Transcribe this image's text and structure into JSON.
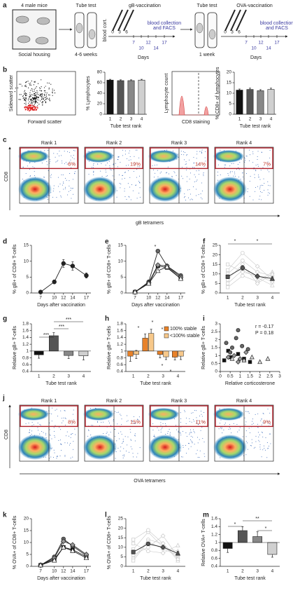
{
  "panel_labels": [
    "a",
    "b",
    "c",
    "d",
    "e",
    "f",
    "g",
    "h",
    "i",
    "j",
    "k",
    "l",
    "m"
  ],
  "schematic": {
    "housing_top": "4 male mice",
    "housing_bottom": "Social housing",
    "tube1": "Tube test",
    "tube1_time": "4-6 weeks",
    "cort": "blood cort.",
    "vacc1": "gB-vaccination",
    "tube2": "Tube test",
    "tube2_time": "1 week",
    "vacc2": "OVA-vaccination",
    "injections": [
      0,
      3,
      6
    ],
    "sampling": [
      7,
      10,
      12,
      14,
      17
    ],
    "note": [
      "blood collection",
      "and FACS"
    ],
    "axis": "Days"
  },
  "gating": {
    "scatter_y": "Sideward scatter",
    "scatter_x": "Forward scatter",
    "hist_y": "Lymphocyte count",
    "hist_x": "CD8 staining"
  },
  "flow": [
    {
      "ylabel": "CD8",
      "xlabel": "gB tetramers",
      "panels": [
        {
          "title": "Rank 1",
          "percent": "6%"
        },
        {
          "title": "Rank 2",
          "percent": "19%"
        },
        {
          "title": "Rank 3",
          "percent": "14%"
        },
        {
          "title": "Rank 4",
          "percent": "7%"
        }
      ]
    },
    {
      "ylabel": "CD8",
      "xlabel": "OVA tetramers",
      "panels": [
        {
          "title": "Rank 1",
          "percent": "8%"
        },
        {
          "title": "Rank 2",
          "percent": "15%"
        },
        {
          "title": "Rank 3",
          "percent": "11%"
        },
        {
          "title": "Rank 4",
          "percent": "9%"
        }
      ]
    }
  ],
  "chart_data": [
    {
      "type": "bar",
      "categories": [
        "1",
        "2",
        "3",
        "4"
      ],
      "values": [
        65,
        64,
        64,
        65
      ],
      "errors": [
        1.5,
        1.5,
        1.5,
        1.5
      ],
      "colors": [
        "#111111",
        "#555555",
        "#888888",
        "#d0d0d0"
      ],
      "ylim": [
        0,
        80
      ],
      "yticks": [
        0,
        20,
        40,
        60,
        80
      ],
      "ylabel": "% Lymphocytes",
      "xlabel": "Tube test rank"
    },
    {
      "type": "bar",
      "categories": [
        "1",
        "2",
        "3",
        "4"
      ],
      "values": [
        11.5,
        11.8,
        11.2,
        11.8
      ],
      "errors": [
        0.5,
        0.6,
        0.5,
        0.6
      ],
      "colors": [
        "#111111",
        "#555555",
        "#888888",
        "#d0d0d0"
      ],
      "ylim": [
        0,
        20
      ],
      "yticks": [
        0,
        5,
        10,
        15,
        20
      ],
      "ylabel": "% CD8+ of lymphocytes",
      "xlabel": "Tube test rank"
    },
    {
      "type": "line",
      "x": [
        7,
        10,
        12,
        14,
        17
      ],
      "xlim": [
        5,
        18
      ],
      "xticks": [
        7,
        10,
        12,
        14,
        17
      ],
      "ylim": [
        0,
        15
      ],
      "yticks": [
        0,
        5,
        10,
        15
      ],
      "series": [
        {
          "color": "#222222",
          "marker": "circle",
          "values": [
            0.3,
            3.5,
            9.3,
            8.5,
            5.5
          ],
          "errors": [
            0.2,
            0.6,
            1.2,
            1.3,
            0.8
          ]
        }
      ],
      "ylabel": "% gB+ of CD8+ T-cells",
      "xlabel": "Days after vaccination"
    },
    {
      "type": "line",
      "x": [
        7,
        10,
        12,
        14,
        17
      ],
      "xlim": [
        5,
        18
      ],
      "xticks": [
        7,
        10,
        12,
        14,
        17
      ],
      "ylim": [
        0,
        15
      ],
      "yticks": [
        0,
        5,
        10,
        15
      ],
      "series": [
        {
          "color": "#111111",
          "marker": "square",
          "values": [
            0.3,
            3,
            8.5,
            8,
            4.5
          ]
        },
        {
          "color": "#666666",
          "marker": "circle",
          "values": [
            0.3,
            3.5,
            13.2,
            8.5,
            5.5
          ]
        },
        {
          "color": "#9a9a9a",
          "marker": "diamond",
          "values": [
            0.3,
            3.2,
            8.8,
            8.5,
            5
          ]
        },
        {
          "color": "#ffffff",
          "marker": "triangle",
          "values": [
            0.3,
            3,
            7,
            8.2,
            4.5
          ]
        }
      ],
      "annotations": [
        "*"
      ],
      "ylabel": "% gB+ of CD8+ T-cells",
      "xlabel": "Days after vaccination"
    },
    {
      "type": "line",
      "categories": [
        "1",
        "2",
        "3",
        "4"
      ],
      "markers": [
        "square",
        "circle",
        "diamond",
        "triangle"
      ],
      "ylim": [
        0,
        25
      ],
      "yticks": [
        0,
        5,
        10,
        15,
        20,
        25
      ],
      "series": [
        {
          "color": "#c8c8c8",
          "fill": false,
          "values": [
            5,
            12,
            8,
            4
          ]
        },
        {
          "color": "#c8c8c8",
          "fill": false,
          "values": [
            10,
            17,
            11,
            9
          ]
        },
        {
          "color": "#c8c8c8",
          "fill": false,
          "values": [
            3,
            9,
            6,
            11
          ]
        },
        {
          "color": "#c8c8c8",
          "fill": false,
          "values": [
            12,
            21,
            14,
            7
          ]
        },
        {
          "color": "#c8c8c8",
          "fill": false,
          "values": [
            7,
            15,
            5,
            10
          ]
        },
        {
          "color": "#c8c8c8",
          "fill": false,
          "values": [
            15,
            11,
            9,
            6
          ]
        },
        {
          "color": "#555555",
          "fill": true,
          "values": [
            8.5,
            13.2,
            8.8,
            7.5
          ],
          "errors": [
            1,
            1.2,
            1,
            1
          ]
        }
      ],
      "annotations": [
        "*",
        "*"
      ],
      "ylabel": "% gB+ of CD8+ T-cells",
      "xlabel": "Tube test rank"
    },
    {
      "type": "bar",
      "base": 1,
      "categories": [
        "1",
        "2",
        "3",
        "4"
      ],
      "values": [
        0.89,
        1.45,
        0.87,
        0.86
      ],
      "errors": [
        0.1,
        0.09,
        0.09,
        0.12
      ],
      "colors": [
        "#111111",
        "#555555",
        "#888888",
        "#d0d0d0"
      ],
      "ylim": [
        0.4,
        1.8
      ],
      "yticks": [
        0.4,
        0.6,
        0.8,
        1,
        1.2,
        1.4,
        1.6,
        1.8
      ],
      "annotations": [
        "***",
        "***",
        "***"
      ],
      "ylabel": "Relative gB+ T-cells",
      "xlabel": "Tube test rank"
    },
    {
      "type": "grouped_bar",
      "base": 1,
      "categories": [
        "1",
        "2",
        "3",
        "4"
      ],
      "ylim": [
        0.4,
        1.8
      ],
      "yticks": [
        0.4,
        0.6,
        0.8,
        1,
        1.2,
        1.4,
        1.6,
        1.8
      ],
      "series": [
        {
          "name": "100% stable",
          "color": "#e8822a",
          "values": [
            0.85,
            1.38,
            0.9,
            0.82
          ],
          "errors": [
            0.15,
            0.12,
            0.1,
            0.08
          ]
        },
        {
          "name": "<100% stable",
          "color": "#f7c88a",
          "values": [
            0.9,
            1.52,
            0.83,
            0.85
          ],
          "errors": [
            0.12,
            0.12,
            0.08,
            0.1
          ]
        }
      ],
      "annotations": [
        "*",
        "*",
        "*",
        "*",
        "*"
      ],
      "ylabel": "Relative gB+ T-cells",
      "xlabel": "Tube test rank"
    },
    {
      "type": "scatter",
      "xlim": [
        0,
        3
      ],
      "xticks": [
        0,
        0.5,
        1,
        1.5,
        2,
        2.5,
        3
      ],
      "ylim": [
        0,
        3
      ],
      "yticks": [
        0,
        0.5,
        1,
        1.5,
        2,
        2.5,
        3
      ],
      "series": [
        {
          "color": "#111111",
          "marker": "square",
          "x": [
            0.2,
            0.5,
            0.9,
            1.2,
            0.4,
            1.5
          ],
          "values": [
            0.7,
            0.9,
            1.1,
            0.8,
            1.3,
            0.6
          ]
        },
        {
          "color": "#666666",
          "marker": "circle",
          "x": [
            0.3,
            0.6,
            0.8,
            1.1,
            0.5,
            1.4,
            0.9
          ],
          "values": [
            1.8,
            1.5,
            2.1,
            1.6,
            1.2,
            1.4,
            2.6
          ]
        },
        {
          "color": "#9a9a9a",
          "marker": "diamond",
          "x": [
            0.4,
            0.7,
            1.0,
            1.3,
            0.9
          ],
          "values": [
            0.9,
            1.0,
            0.8,
            1.2,
            0.6
          ]
        },
        {
          "color": "#e0e0e0",
          "marker": "triangle",
          "x": [
            0.6,
            1.2,
            1.6,
            2.0,
            2.4
          ],
          "values": [
            0.8,
            0.7,
            0.9,
            0.6,
            0.8
          ]
        }
      ],
      "annotations": [
        "r = -0.17",
        "P = 0.18"
      ],
      "ylabel": "Relative gB+ T-cells",
      "xlabel": "Relative corticosterone"
    },
    {
      "type": "line",
      "x": [
        7,
        10,
        12,
        14,
        17
      ],
      "xlim": [
        5,
        18
      ],
      "xticks": [
        7,
        10,
        12,
        14,
        17
      ],
      "ylim": [
        0,
        20
      ],
      "yticks": [
        0,
        5,
        10,
        15,
        20
      ],
      "series": [
        {
          "color": "#111111",
          "marker": "square",
          "values": [
            0.5,
            3,
            8,
            7,
            4
          ]
        },
        {
          "color": "#666666",
          "marker": "circle",
          "values": [
            0.5,
            4,
            11.5,
            8.5,
            4.5
          ]
        },
        {
          "color": "#9a9a9a",
          "marker": "diamond",
          "values": [
            0.5,
            3.5,
            10.5,
            9,
            5
          ]
        },
        {
          "color": "#ffffff",
          "marker": "triangle",
          "values": [
            0.5,
            2.5,
            8,
            6.5,
            3.5
          ]
        }
      ],
      "ylabel": "% OVA+ of CD8+ T-cells",
      "xlabel": "Days after vaccination"
    },
    {
      "type": "line",
      "categories": [
        "1",
        "2",
        "3",
        "4"
      ],
      "markers": [
        "square",
        "circle",
        "diamond",
        "triangle"
      ],
      "ylim": [
        0,
        25
      ],
      "yticks": [
        0,
        5,
        10,
        15,
        20,
        25
      ],
      "series": [
        {
          "color": "#c8c8c8",
          "fill": false,
          "values": [
            4,
            14,
            12,
            3
          ]
        },
        {
          "color": "#c8c8c8",
          "fill": false,
          "values": [
            9,
            18,
            10,
            8
          ]
        },
        {
          "color": "#c8c8c8",
          "fill": false,
          "values": [
            6,
            10,
            16,
            5
          ]
        },
        {
          "color": "#c8c8c8",
          "fill": false,
          "values": [
            12,
            8,
            7,
            11
          ]
        },
        {
          "color": "#c8c8c8",
          "fill": false,
          "values": [
            3,
            13,
            9,
            6
          ]
        },
        {
          "color": "#c8c8c8",
          "fill": false,
          "values": [
            14,
            19,
            12,
            4
          ]
        },
        {
          "color": "#555555",
          "fill": true,
          "values": [
            7.5,
            11.8,
            10,
            6.8
          ],
          "errors": [
            1,
            1,
            1,
            1
          ]
        }
      ],
      "ylabel": "% OVA+ of CD8+ T-cells",
      "xlabel": "Tube test rank"
    },
    {
      "type": "bar",
      "base": 1,
      "categories": [
        "1",
        "2",
        "3",
        "4"
      ],
      "values": [
        0.85,
        1.3,
        1.15,
        0.7
      ],
      "errors": [
        0.1,
        0.1,
        0.12,
        0.07
      ],
      "colors": [
        "#111111",
        "#555555",
        "#888888",
        "#d0d0d0"
      ],
      "ylim": [
        0.4,
        1.6
      ],
      "yticks": [
        0.4,
        0.6,
        0.8,
        1,
        1.2,
        1.4,
        1.6
      ],
      "annotations": [
        "*",
        "**",
        "*"
      ],
      "ylabel": "Relative OVA+ T-cells",
      "xlabel": "Tube test rank"
    }
  ]
}
